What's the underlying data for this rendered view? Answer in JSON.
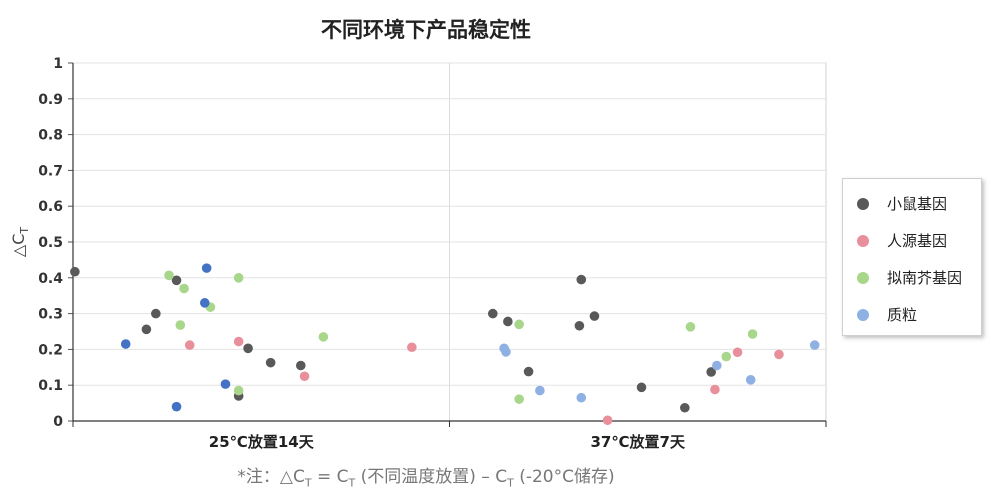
{
  "chart_data": {
    "type": "scatter",
    "title": "不同环境下产品稳定性",
    "ylabel": "△CT",
    "ylabel_main": "△C",
    "ylabel_sub": "T",
    "ylim": [
      0,
      1
    ],
    "yticks": [
      "0",
      "0.1",
      "0.2",
      "0.3",
      "0.4",
      "0.5",
      "0.6",
      "0.7",
      "0.8",
      "0.9",
      "1"
    ],
    "categories": [
      "25℃放置14天",
      "37℃放置7天"
    ],
    "grid": true,
    "legend_position": "right",
    "series": [
      {
        "name": "小鼠基因",
        "color": "#595959",
        "points": [
          {
            "group": 0,
            "offset": -0.99,
            "y": 0.417
          },
          {
            "group": 0,
            "offset": -0.61,
            "y": 0.256
          },
          {
            "group": 0,
            "offset": -0.56,
            "y": 0.3
          },
          {
            "group": 0,
            "offset": -0.45,
            "y": 0.393
          },
          {
            "group": 0,
            "offset": -0.12,
            "y": 0.07
          },
          {
            "group": 0,
            "offset": -0.07,
            "y": 0.203
          },
          {
            "group": 0,
            "offset": 0.05,
            "y": 0.163
          },
          {
            "group": 0,
            "offset": 0.21,
            "y": 0.155
          },
          {
            "group": 1,
            "offset": -0.77,
            "y": 0.3
          },
          {
            "group": 1,
            "offset": -0.69,
            "y": 0.278
          },
          {
            "group": 1,
            "offset": -0.58,
            "y": 0.138
          },
          {
            "group": 1,
            "offset": -0.3,
            "y": 0.395
          },
          {
            "group": 1,
            "offset": -0.31,
            "y": 0.266
          },
          {
            "group": 1,
            "offset": -0.23,
            "y": 0.293
          },
          {
            "group": 1,
            "offset": 0.02,
            "y": 0.094
          },
          {
            "group": 1,
            "offset": 0.25,
            "y": 0.037
          },
          {
            "group": 1,
            "offset": 0.39,
            "y": 0.137
          }
        ]
      },
      {
        "name": "人源基因",
        "color": "#e98f9b",
        "points": [
          {
            "group": 0,
            "offset": -0.38,
            "y": 0.212
          },
          {
            "group": 0,
            "offset": -0.12,
            "y": 0.222
          },
          {
            "group": 0,
            "offset": 0.23,
            "y": 0.125
          },
          {
            "group": 0,
            "offset": 0.8,
            "y": 0.206
          },
          {
            "group": 1,
            "offset": -0.16,
            "y": 0.002
          },
          {
            "group": 1,
            "offset": 0.41,
            "y": 0.088
          },
          {
            "group": 1,
            "offset": 0.53,
            "y": 0.192
          },
          {
            "group": 1,
            "offset": 0.75,
            "y": 0.186
          }
        ]
      },
      {
        "name": "拟南芥基因",
        "color": "#a8d68a",
        "points": [
          {
            "group": 0,
            "offset": -0.49,
            "y": 0.407
          },
          {
            "group": 0,
            "offset": -0.43,
            "y": 0.268
          },
          {
            "group": 0,
            "offset": -0.41,
            "y": 0.37
          },
          {
            "group": 0,
            "offset": -0.27,
            "y": 0.318
          },
          {
            "group": 0,
            "offset": -0.12,
            "y": 0.4
          },
          {
            "group": 0,
            "offset": -0.12,
            "y": 0.085
          },
          {
            "group": 0,
            "offset": 0.33,
            "y": 0.235
          },
          {
            "group": 1,
            "offset": -0.63,
            "y": 0.27
          },
          {
            "group": 1,
            "offset": -0.63,
            "y": 0.061
          },
          {
            "group": 1,
            "offset": 0.28,
            "y": 0.263
          },
          {
            "group": 1,
            "offset": 0.47,
            "y": 0.18
          },
          {
            "group": 1,
            "offset": 0.61,
            "y": 0.243
          }
        ]
      },
      {
        "name": "质粒",
        "color": "#8fb0e3",
        "points": [
          {
            "group": 1,
            "offset": -0.71,
            "y": 0.203
          },
          {
            "group": 1,
            "offset": -0.7,
            "y": 0.193
          },
          {
            "group": 1,
            "offset": -0.52,
            "y": 0.085
          },
          {
            "group": 1,
            "offset": -0.3,
            "y": 0.065
          },
          {
            "group": 1,
            "offset": 0.42,
            "y": 0.155
          },
          {
            "group": 1,
            "offset": 0.6,
            "y": 0.115
          },
          {
            "group": 1,
            "offset": 0.94,
            "y": 0.212
          }
        ]
      },
      {
        "name": "",
        "color": "#4472c4",
        "points": [
          {
            "group": 0,
            "offset": -0.72,
            "y": 0.215
          },
          {
            "group": 0,
            "offset": -0.29,
            "y": 0.427
          },
          {
            "group": 0,
            "offset": -0.3,
            "y": 0.33
          },
          {
            "group": 0,
            "offset": -0.19,
            "y": 0.103
          },
          {
            "group": 0,
            "offset": -0.45,
            "y": 0.04
          }
        ]
      }
    ]
  },
  "legend": [
    {
      "label": "小鼠基因",
      "color": "#595959"
    },
    {
      "label": "人源基因",
      "color": "#e98f9b"
    },
    {
      "label": "拟南芥基因",
      "color": "#a8d68a"
    },
    {
      "label": "质粒",
      "color": "#8fb0e3"
    }
  ],
  "footnote": {
    "prefix": "*注：△C",
    "sub1": "T",
    "eq": " = C",
    "sub2": "T",
    "mid": " (不同温度放置) – C",
    "sub3": "T",
    "suffix": " (-20°C储存)"
  }
}
